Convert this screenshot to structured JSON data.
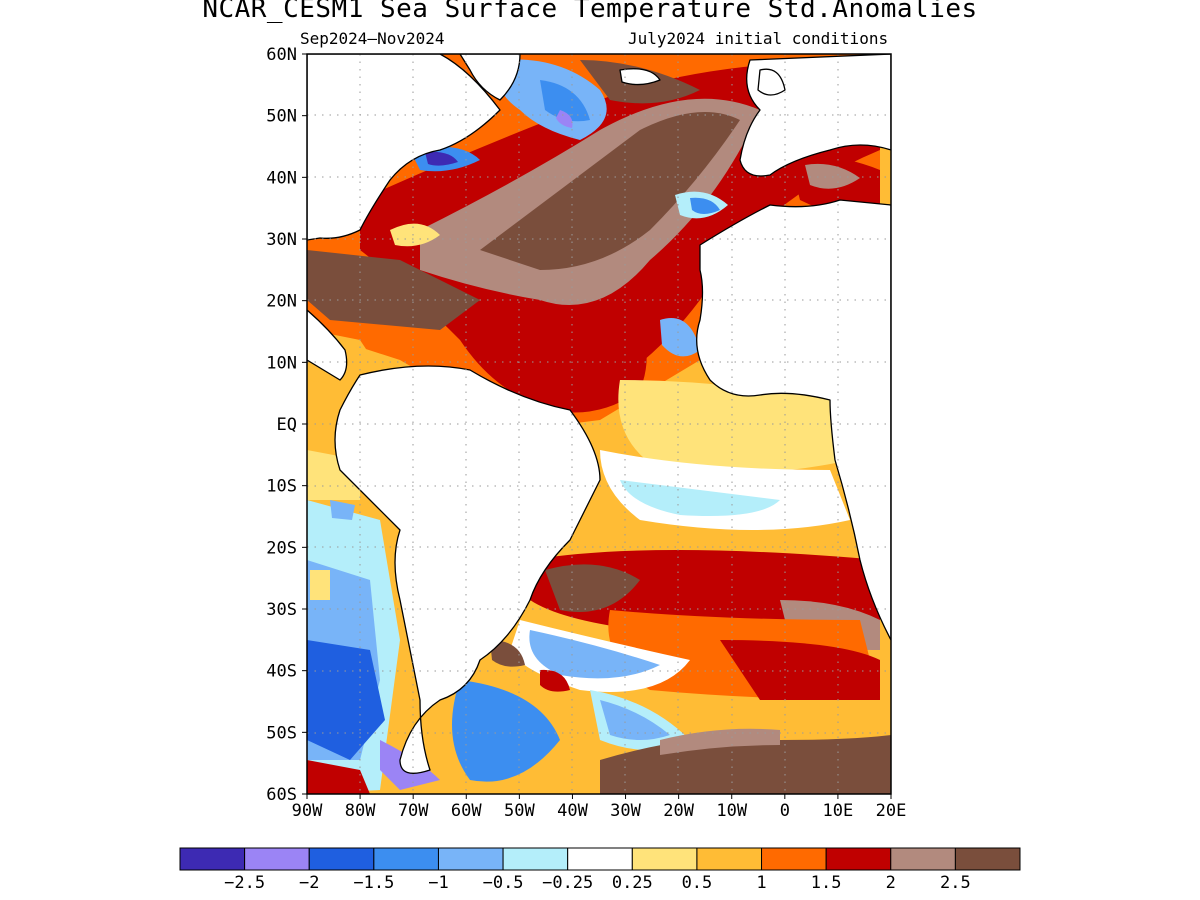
{
  "map": {
    "title": "NCAR_CESM1 Sea Surface Temperature Std.Anomalies",
    "season": "Sep2024–Nov2024",
    "initial_conditions": "July2024 initial conditions",
    "lat_labels": [
      "60N",
      "50N",
      "40N",
      "30N",
      "20N",
      "10N",
      "EQ",
      "10S",
      "20S",
      "30S",
      "40S",
      "50S",
      "60S"
    ],
    "lon_labels": [
      "90W",
      "80W",
      "70W",
      "60W",
      "50W",
      "40W",
      "30W",
      "20W",
      "10W",
      "0",
      "10E",
      "20E"
    ],
    "lat_range": [
      -60,
      60
    ],
    "lon_range": [
      -90,
      20
    ],
    "grid": "dotted"
  },
  "colorbar": {
    "colors": [
      "#3d2ab3",
      "#9b84f5",
      "#1f5fe0",
      "#3c8ef0",
      "#78b4f8",
      "#b4eefa",
      "#ffffff",
      "#ffe37a",
      "#ffbc35",
      "#ff6a00",
      "#c00000",
      "#b28a7e",
      "#7a4e3c"
    ],
    "tick_labels": [
      "−2.5",
      "−2",
      "−1.5",
      "−1",
      "−0.5",
      "−0.25",
      "0.25",
      "0.5",
      "1",
      "1.5",
      "2",
      "2.5"
    ]
  },
  "colors": {
    "land": "#ffffff",
    "coast": "#000000"
  }
}
